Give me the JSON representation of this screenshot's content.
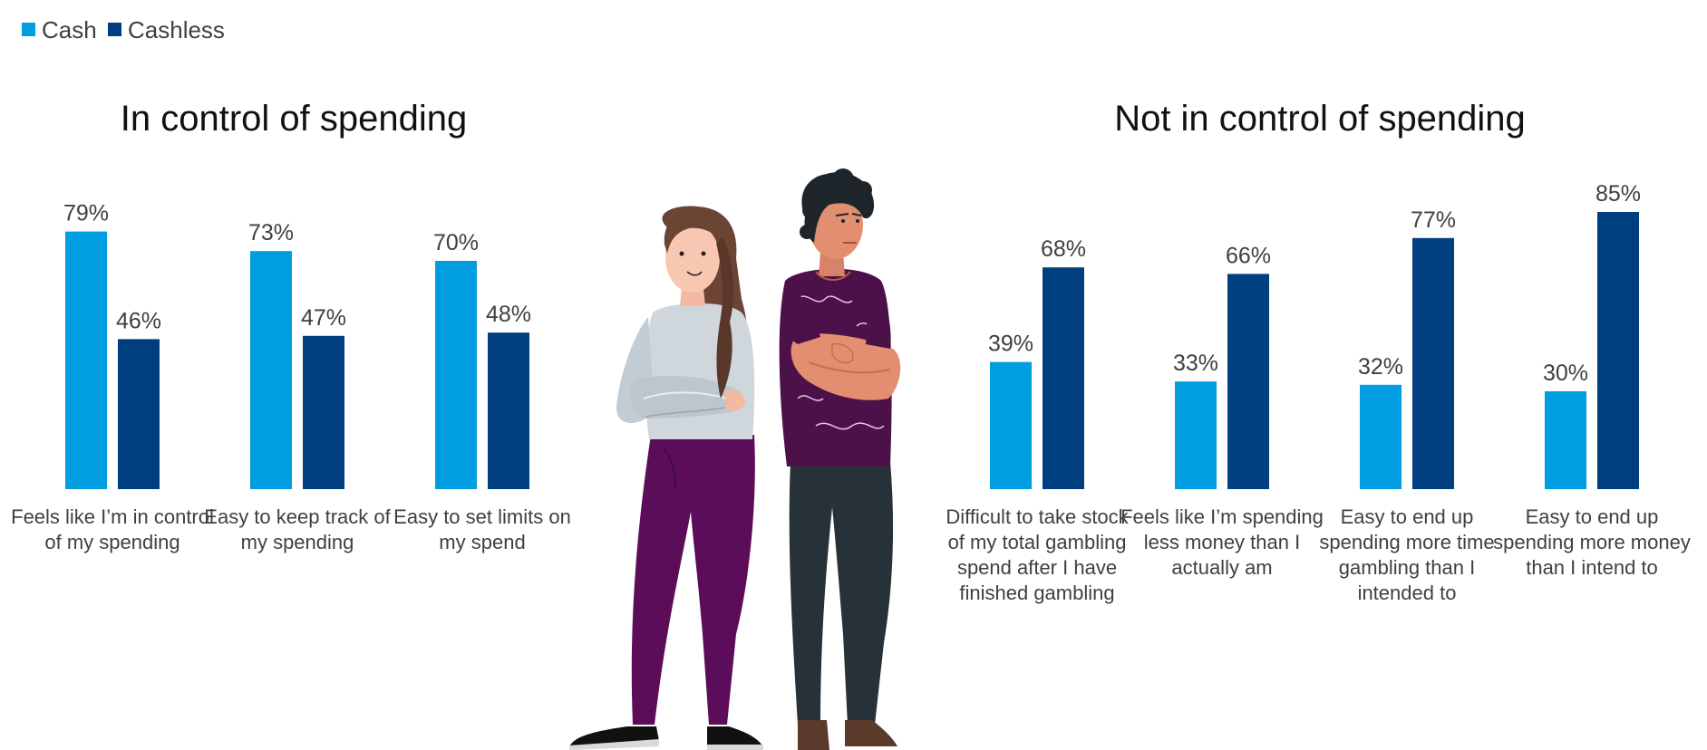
{
  "colors": {
    "cash": "#009ee0",
    "cashless": "#003f7f"
  },
  "legend": [
    {
      "label": "Cash",
      "color": "#009ee0"
    },
    {
      "label": "Cashless",
      "color": "#003f7f"
    }
  ],
  "illustration": {
    "name": "two-people-arms-crossed",
    "woman": "woman-figure",
    "man": "man-figure"
  },
  "chart_data": [
    {
      "type": "bar",
      "title": "In control of spending",
      "categories": [
        "Feels like I'm in control of my spending",
        "Easy to keep track of my spending",
        "Easy to set limits on my spend"
      ],
      "category_lines": [
        [
          "Feels like I’m in control",
          "of my spending"
        ],
        [
          "Easy to keep track of",
          "my spending"
        ],
        [
          "Easy to set limits on",
          "my spend"
        ]
      ],
      "series": [
        {
          "name": "Cash",
          "values": [
            79,
            73,
            70
          ],
          "labels": [
            "79%",
            "73%",
            "70%"
          ]
        },
        {
          "name": "Cashless",
          "values": [
            46,
            47,
            48
          ],
          "labels": [
            "46%",
            "47%",
            "48%"
          ]
        }
      ],
      "ylim": [
        0,
        100
      ]
    },
    {
      "type": "bar",
      "title": "Not in control of spending",
      "categories": [
        "Difficult to take stock of my total gambling spend after I have finished gambling",
        "Feels like I'm spending less money than I actually am",
        "Easy to end up spending more time gambling than I intended to",
        "Easy to end up spending more money than I intend to"
      ],
      "category_lines": [
        [
          "Difficult to take stock",
          "of my total gambling",
          "spend after I have",
          "finished gambling"
        ],
        [
          "Feels like I’m spending",
          "less money than I",
          "actually am"
        ],
        [
          "Easy to end up",
          "spending more time",
          "gambling than I",
          "intended to"
        ],
        [
          "Easy to end up",
          "spending more money",
          "than I intend to"
        ]
      ],
      "series": [
        {
          "name": "Cash",
          "values": [
            39,
            33,
            32,
            30
          ],
          "labels": [
            "39%",
            "33%",
            "32%",
            "30%"
          ]
        },
        {
          "name": "Cashless",
          "values": [
            68,
            66,
            77,
            85
          ],
          "labels": [
            "68%",
            "66%",
            "77%",
            "85%"
          ]
        }
      ],
      "ylim": [
        0,
        100
      ]
    }
  ]
}
